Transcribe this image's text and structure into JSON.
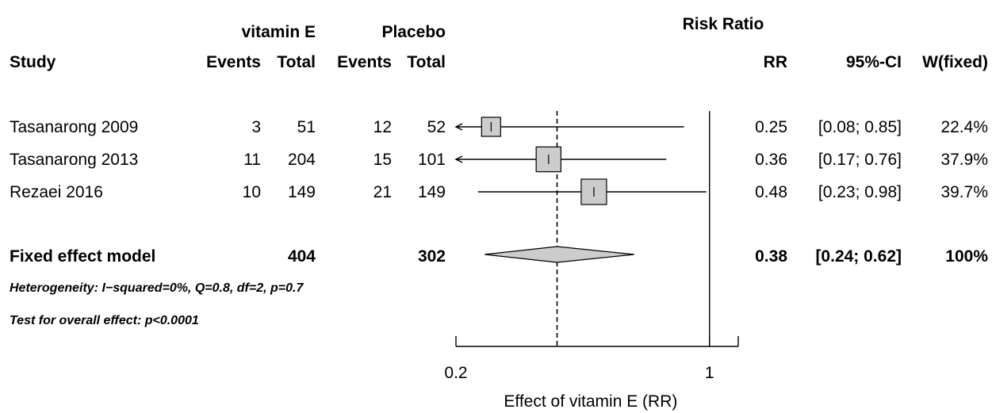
{
  "chart_data": {
    "type": "forest",
    "header": {
      "group1": "vitamin E",
      "group2": "Placebo",
      "plot_title": "Risk Ratio",
      "study": "Study",
      "events": "Events",
      "total": "Total",
      "rr": "RR",
      "ci": "95%-CI",
      "weight": "W(fixed)"
    },
    "studies": [
      {
        "name": "Tasanarong 2009",
        "e1": "3",
        "n1": "51",
        "e2": "12",
        "n2": "52",
        "rr": 0.25,
        "lower": 0.08,
        "upper": 0.85,
        "rr_text": "0.25",
        "ci_text": "[0.08; 0.85]",
        "weight_text": "22.4%",
        "weight": 22.4
      },
      {
        "name": "Tasanarong 2013",
        "e1": "11",
        "n1": "204",
        "e2": "15",
        "n2": "101",
        "rr": 0.36,
        "lower": 0.17,
        "upper": 0.76,
        "rr_text": "0.36",
        "ci_text": "[0.17; 0.76]",
        "weight_text": "37.9%",
        "weight": 37.9
      },
      {
        "name": "Rezaei 2016",
        "e1": "10",
        "n1": "149",
        "e2": "21",
        "n2": "149",
        "rr": 0.48,
        "lower": 0.23,
        "upper": 0.98,
        "rr_text": "0.48",
        "ci_text": "[0.23; 0.98]",
        "weight_text": "39.7%",
        "weight": 39.7
      }
    ],
    "pooled": {
      "name": "Fixed effect model",
      "n1": "404",
      "n2": "302",
      "rr": 0.38,
      "lower": 0.24,
      "upper": 0.62,
      "rr_text": "0.38",
      "ci_text": "[0.24; 0.62]",
      "weight_text": "100%"
    },
    "heterogeneity": "Heterogeneity: I−squared=0%, Q=0.8, df=2, p=0.7",
    "overall_test": "Test for overall effect:  p<0.0001",
    "x_axis": {
      "label": "Effect of vitamin E (RR)",
      "scale": "log",
      "range": [
        0.2,
        1.2
      ],
      "ticks": [
        0.2,
        1
      ],
      "tick_labels": [
        "0.2",
        "1"
      ],
      "null_value": 1
    }
  }
}
